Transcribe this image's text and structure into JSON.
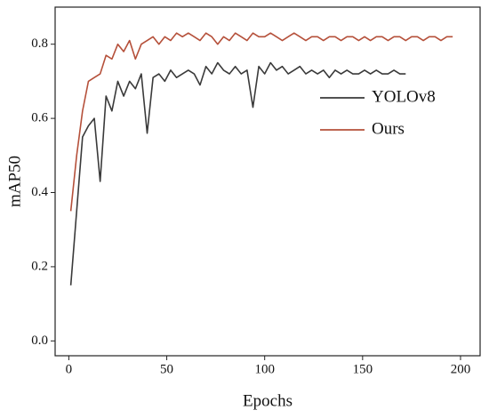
{
  "chart_data": {
    "type": "line",
    "xlabel": "Epochs",
    "ylabel": "mAP50",
    "x": [
      1,
      4,
      7,
      10,
      13,
      16,
      19,
      22,
      25,
      28,
      31,
      34,
      37,
      40,
      43,
      46,
      49,
      52,
      55,
      58,
      61,
      64,
      67,
      70,
      73,
      76,
      79,
      82,
      85,
      88,
      91,
      94,
      97,
      100,
      103,
      106,
      109,
      112,
      115,
      118,
      121,
      124,
      127,
      130,
      133,
      136,
      139,
      142,
      145,
      148,
      151,
      154,
      157,
      160,
      163,
      166,
      169,
      172,
      175,
      178,
      181,
      184,
      187,
      190,
      193,
      196
    ],
    "series": [
      {
        "name": "YOLOv8",
        "color": "#3a3a3a",
        "values": [
          0.15,
          0.35,
          0.55,
          0.58,
          0.6,
          0.43,
          0.66,
          0.62,
          0.7,
          0.66,
          0.7,
          0.68,
          0.72,
          0.56,
          0.71,
          0.72,
          0.7,
          0.73,
          0.71,
          0.72,
          0.73,
          0.72,
          0.69,
          0.74,
          0.72,
          0.75,
          0.73,
          0.72,
          0.74,
          0.72,
          0.73,
          0.63,
          0.74,
          0.72,
          0.75,
          0.73,
          0.74,
          0.72,
          0.73,
          0.74,
          0.72,
          0.73,
          0.72,
          0.73,
          0.71,
          0.73,
          0.72,
          0.73,
          0.72,
          0.72,
          0.73,
          0.72,
          0.73,
          0.72,
          0.72,
          0.73,
          0.72,
          0.72,
          null,
          null,
          null,
          null,
          null,
          null,
          null,
          null
        ]
      },
      {
        "name": "Ours",
        "color": "#b5503a",
        "values": [
          0.35,
          0.5,
          0.62,
          0.7,
          0.71,
          0.72,
          0.77,
          0.76,
          0.8,
          0.78,
          0.81,
          0.76,
          0.8,
          0.81,
          0.82,
          0.8,
          0.82,
          0.81,
          0.83,
          0.82,
          0.83,
          0.82,
          0.81,
          0.83,
          0.82,
          0.8,
          0.82,
          0.81,
          0.83,
          0.82,
          0.81,
          0.83,
          0.82,
          0.82,
          0.83,
          0.82,
          0.81,
          0.82,
          0.83,
          0.82,
          0.81,
          0.82,
          0.82,
          0.81,
          0.82,
          0.82,
          0.81,
          0.82,
          0.82,
          0.81,
          0.82,
          0.81,
          0.82,
          0.82,
          0.81,
          0.82,
          0.82,
          0.81,
          0.82,
          0.82,
          0.81,
          0.82,
          0.82,
          0.81,
          0.82,
          0.82
        ]
      }
    ],
    "xlim": [
      -7,
      210
    ],
    "xticks": [
      0,
      50,
      100,
      150,
      200
    ],
    "ylim": [
      -0.04,
      0.9
    ],
    "yticks": [
      {
        "value": 0,
        "label": "0.0"
      },
      0.2,
      0.4,
      0.6,
      0.8
    ],
    "legend": "upper right"
  }
}
